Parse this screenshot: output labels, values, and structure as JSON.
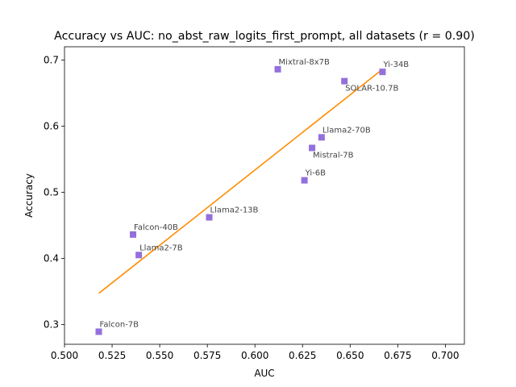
{
  "chart_data": {
    "type": "scatter",
    "title": "Accuracy vs AUC: no_abst_raw_logits_first_prompt, all datasets (r = 0.90)",
    "xlabel": "AUC",
    "ylabel": "Accuracy",
    "xlim": [
      0.5,
      0.71
    ],
    "ylim": [
      0.27,
      0.72
    ],
    "x_ticks": [
      "0.500",
      "0.525",
      "0.550",
      "0.575",
      "0.600",
      "0.625",
      "0.650",
      "0.675",
      "0.700"
    ],
    "y_ticks": [
      "0.3",
      "0.4",
      "0.5",
      "0.6",
      "0.7"
    ],
    "grid": false,
    "marker_color": "#9370DB",
    "line_color": "#FF8C00",
    "points": [
      {
        "label": "Mixtral-8x7B",
        "x": 0.612,
        "y": 0.686
      },
      {
        "label": "Yi-34B",
        "x": 0.667,
        "y": 0.682
      },
      {
        "label": "SOLAR-10.7B",
        "x": 0.647,
        "y": 0.668
      },
      {
        "label": "Llama2-70B",
        "x": 0.635,
        "y": 0.583
      },
      {
        "label": "Mistral-7B",
        "x": 0.63,
        "y": 0.567
      },
      {
        "label": "Yi-6B",
        "x": 0.626,
        "y": 0.518
      },
      {
        "label": "Llama2-13B",
        "x": 0.576,
        "y": 0.462
      },
      {
        "label": "Falcon-40B",
        "x": 0.536,
        "y": 0.436
      },
      {
        "label": "Llama2-7B",
        "x": 0.539,
        "y": 0.405
      },
      {
        "label": "Falcon-7B",
        "x": 0.518,
        "y": 0.289
      }
    ],
    "fit_line": {
      "x": [
        0.518,
        0.667
      ],
      "y": [
        0.347,
        0.686
      ]
    }
  }
}
